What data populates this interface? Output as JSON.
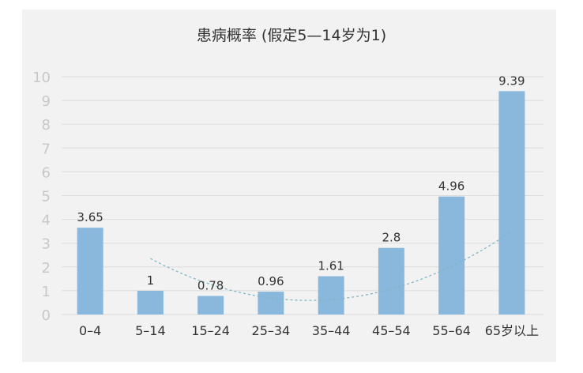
{
  "chart_data": {
    "type": "bar",
    "title": "患病概率 (假定5—14岁为1)",
    "categories": [
      "0–4",
      "5–14",
      "15–24",
      "25–34",
      "35–44",
      "45–54",
      "55–64",
      "65岁以上"
    ],
    "values": [
      3.65,
      1,
      0.78,
      0.96,
      1.61,
      2.8,
      4.96,
      9.39
    ],
    "value_labels": [
      "3.65",
      "1",
      "0.78",
      "0.96",
      "1.61",
      "2.8",
      "4.96",
      "9.39"
    ],
    "ylim": [
      0,
      10
    ],
    "yticks": [
      "0",
      "1",
      "2",
      "3",
      "4",
      "5",
      "6",
      "7",
      "8",
      "9",
      "10"
    ],
    "grid": true,
    "trendline": "dashed polynomial trend",
    "colors": {
      "bar": "#8ab8dc",
      "grid": "#dcdcdc",
      "trend": "#7fb6c9",
      "background": "#f2f2f2"
    }
  }
}
